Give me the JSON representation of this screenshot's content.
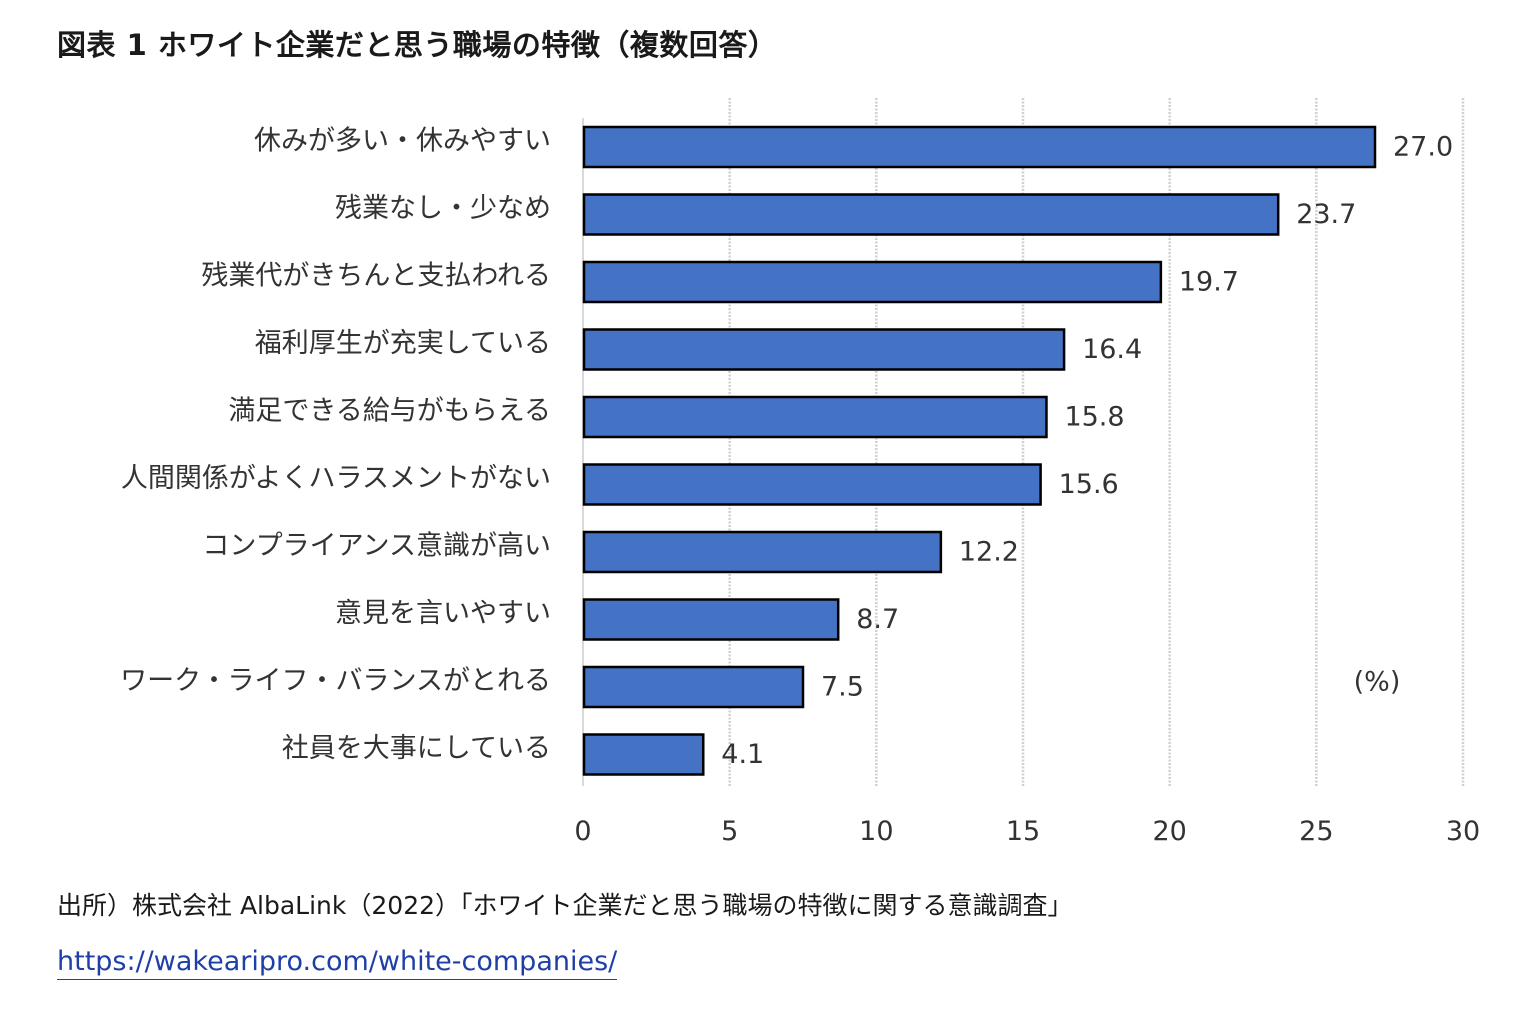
{
  "page": {
    "title": "図表 1 ホワイト企業だと思う職場の特徴（複数回答）",
    "source": "出所）株式会社 AlbaLink（2022）「ホワイト企業だと思う職場の特徴に関する意識調査」",
    "link": "https://wakearipro.com/white-companies/"
  },
  "chart_data": {
    "type": "bar",
    "orientation": "horizontal",
    "title": "図表 1 ホワイト企業だと思う職場の特徴（複数回答）",
    "unit": "(%)",
    "categories": [
      "休みが多い・休みやすい",
      "残業なし・少なめ",
      "残業代がきちんと支払われる",
      "福利厚生が充実している",
      "満足できる給与がもらえる",
      "人間関係がよくハラスメントがない",
      "コンプライアンス意識が高い",
      "意見を言いやすい",
      "ワーク・ライフ・バランスがとれる",
      "社員を大事にしている"
    ],
    "values": [
      27.0,
      23.7,
      19.7,
      16.4,
      15.8,
      15.6,
      12.2,
      8.7,
      7.5,
      4.1
    ],
    "value_labels": [
      "27.0",
      "23.7",
      "19.7",
      "16.4",
      "15.8",
      "15.6",
      "12.2",
      "8.7",
      "7.5",
      "4.1"
    ],
    "xlim": [
      0,
      30
    ],
    "xticks": [
      "0",
      "5",
      "10",
      "15",
      "20",
      "25",
      "30"
    ],
    "grid": true,
    "bar_color": "#4472c4",
    "bar_edge_color": "#000000",
    "grid_color": "#d0d0d0"
  }
}
